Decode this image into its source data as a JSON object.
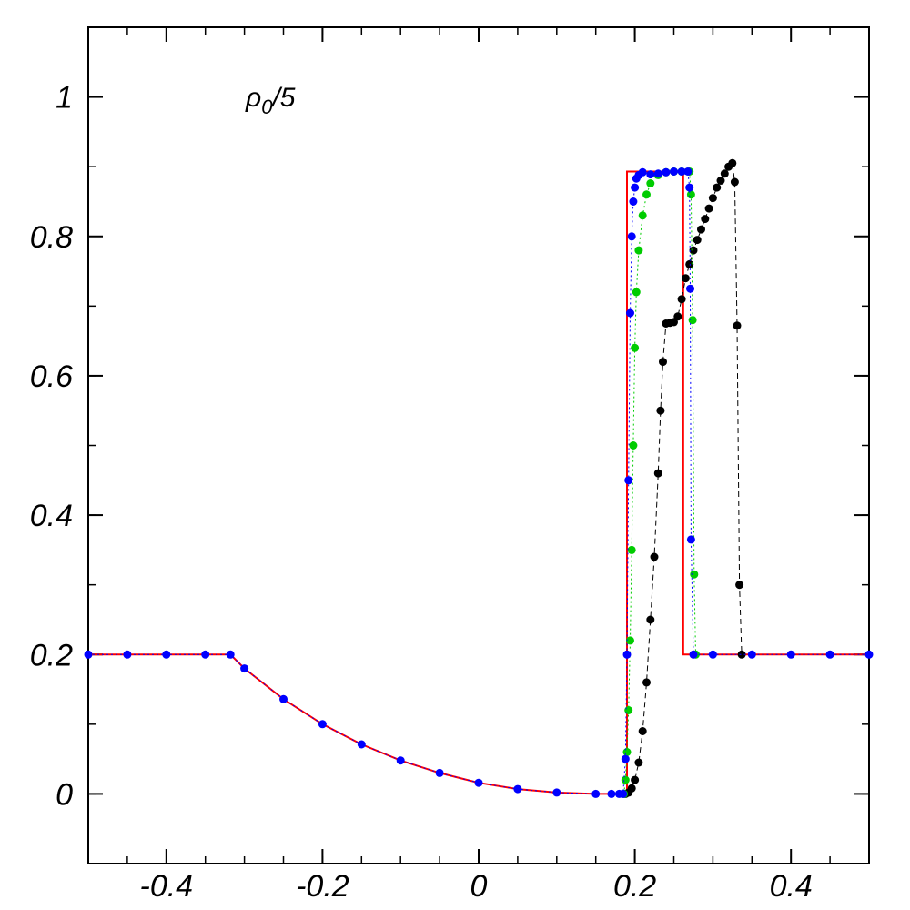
{
  "chart_data": {
    "type": "line",
    "title": "",
    "xlabel": "",
    "ylabel": "",
    "xlim": [
      -0.5,
      0.5
    ],
    "ylim": [
      -0.1,
      1.1
    ],
    "grid": false,
    "annotation": {
      "base": "ρ",
      "sub": "0",
      "rest": "/5"
    },
    "x_ticks": [
      {
        "value": -0.4,
        "label": "-0.4"
      },
      {
        "value": -0.2,
        "label": "-0.2"
      },
      {
        "value": 0,
        "label": "0"
      },
      {
        "value": 0.2,
        "label": "0.2"
      },
      {
        "value": 0.4,
        "label": "0.4"
      }
    ],
    "y_ticks": [
      {
        "value": 0,
        "label": "0"
      },
      {
        "value": 0.2,
        "label": "0.2"
      },
      {
        "value": 0.4,
        "label": "0.4"
      },
      {
        "value": 0.6,
        "label": "0.6"
      },
      {
        "value": 0.8,
        "label": "0.8"
      },
      {
        "value": 1,
        "label": "1"
      }
    ],
    "series": [
      {
        "style": "line",
        "color": "#ff0000",
        "x": [
          -0.5,
          -0.318,
          -0.3,
          -0.25,
          -0.2,
          -0.15,
          -0.1,
          -0.05,
          0,
          0.05,
          0.1,
          0.15,
          0.185,
          0.19,
          0.19,
          0.262,
          0.262,
          0.5
        ],
        "y": [
          0.2,
          0.2,
          0.18,
          0.136,
          0.1,
          0.071,
          0.048,
          0.03,
          0.016,
          0.007,
          0.002,
          0.0,
          0.0,
          0.0,
          0.893,
          0.893,
          0.2,
          0.2
        ]
      },
      {
        "style": "dots-dashed",
        "color": "#000000",
        "x": [
          0.188,
          0.192,
          0.196,
          0.2,
          0.205,
          0.21,
          0.215,
          0.22,
          0.225,
          0.23,
          0.233,
          0.236,
          0.24,
          0.245,
          0.25,
          0.255,
          0.26,
          0.265,
          0.27,
          0.275,
          0.28,
          0.285,
          0.29,
          0.295,
          0.3,
          0.305,
          0.31,
          0.315,
          0.32,
          0.325,
          0.328,
          0.331,
          0.334,
          0.337
        ],
        "y": [
          0.0,
          0.002,
          0.008,
          0.02,
          0.045,
          0.09,
          0.16,
          0.25,
          0.34,
          0.46,
          0.55,
          0.62,
          0.675,
          0.676,
          0.677,
          0.685,
          0.71,
          0.74,
          0.76,
          0.78,
          0.795,
          0.81,
          0.825,
          0.84,
          0.855,
          0.87,
          0.88,
          0.89,
          0.9,
          0.905,
          0.878,
          0.672,
          0.3,
          0.2
        ]
      },
      {
        "style": "dots-dotted",
        "color": "#00cc00",
        "x": [
          0.186,
          0.188,
          0.19,
          0.192,
          0.194,
          0.196,
          0.198,
          0.2,
          0.202,
          0.205,
          0.21,
          0.215,
          0.22,
          0.23,
          0.24,
          0.25,
          0.26,
          0.27,
          0.272,
          0.274,
          0.276,
          0.278
        ],
        "y": [
          0.0,
          0.02,
          0.06,
          0.12,
          0.22,
          0.35,
          0.5,
          0.64,
          0.72,
          0.78,
          0.83,
          0.86,
          0.876,
          0.888,
          0.892,
          0.893,
          0.893,
          0.893,
          0.86,
          0.68,
          0.315,
          0.2
        ]
      },
      {
        "style": "dots-dotted",
        "color": "#0000ff",
        "x": [
          -0.5,
          -0.45,
          -0.4,
          -0.35,
          -0.318,
          -0.3,
          -0.25,
          -0.2,
          -0.15,
          -0.1,
          -0.05,
          0,
          0.05,
          0.1,
          0.15,
          0.17,
          0.18,
          0.185,
          0.188,
          0.19,
          0.192,
          0.194,
          0.196,
          0.198,
          0.2,
          0.202,
          0.205,
          0.21,
          0.22,
          0.23,
          0.24,
          0.25,
          0.26,
          0.268,
          0.27,
          0.271,
          0.272,
          0.275,
          0.3,
          0.35,
          0.4,
          0.45,
          0.5
        ],
        "y": [
          0.2,
          0.2,
          0.2,
          0.2,
          0.2,
          0.18,
          0.136,
          0.1,
          0.071,
          0.048,
          0.03,
          0.016,
          0.007,
          0.002,
          0.0,
          0.0,
          0.0,
          0.0,
          0.05,
          0.2,
          0.45,
          0.69,
          0.8,
          0.85,
          0.87,
          0.883,
          0.888,
          0.892,
          0.889,
          0.89,
          0.892,
          0.893,
          0.893,
          0.893,
          0.87,
          0.725,
          0.365,
          0.2,
          0.2,
          0.2,
          0.2,
          0.2,
          0.2
        ]
      }
    ]
  }
}
